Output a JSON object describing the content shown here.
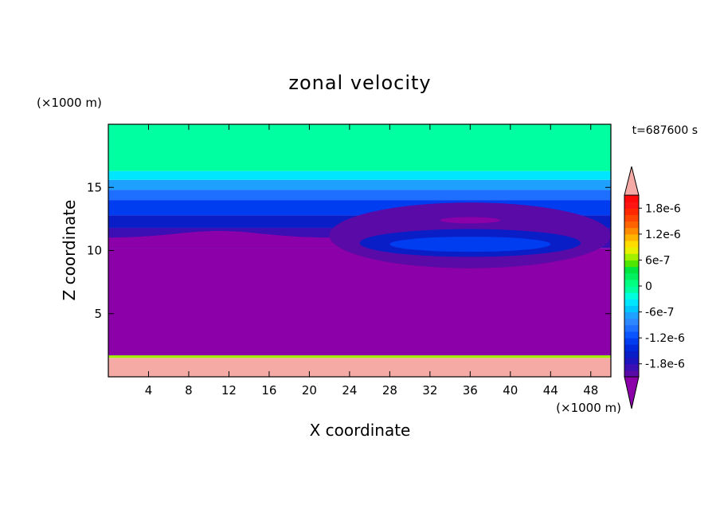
{
  "chart_data": {
    "type": "heatmap",
    "title": "zonal velocity",
    "xlabel": "X coordinate",
    "ylabel": "Z coordinate",
    "x_unit": "(×1000 m)",
    "y_unit": "(×1000 m)",
    "time_label": "t=687600 s",
    "xlim": [
      0,
      50
    ],
    "ylim": [
      0,
      20
    ],
    "x_ticks": [
      4,
      8,
      12,
      16,
      20,
      24,
      28,
      32,
      36,
      40,
      44,
      48
    ],
    "y_ticks": [
      5,
      10,
      15
    ],
    "colorbar": {
      "levels": [
        -2.1e-06,
        -1.95e-06,
        -1.8e-06,
        -1.65e-06,
        -1.5e-06,
        -1.35e-06,
        -1.2e-06,
        -1.05e-06,
        -9e-07,
        -7.5e-07,
        -6e-07,
        -4.5e-07,
        -3e-07,
        -1.5e-07,
        0,
        1.5e-07,
        3e-07,
        4.5e-07,
        6e-07,
        7.5e-07,
        9e-07,
        1.05e-06,
        1.2e-06,
        1.35e-06,
        1.5e-06,
        1.65e-06,
        1.8e-06,
        1.95e-06,
        2.1e-06
      ],
      "colors": [
        "#5a0aa6",
        "#3c0fb4",
        "#1e14bd",
        "#0a1ec8",
        "#0028dc",
        "#003cf0",
        "#0a55ff",
        "#1e6eff",
        "#2d87ff",
        "#1ea0ff",
        "#00c8ff",
        "#00e6ff",
        "#00ffdc",
        "#00ffa0",
        "#00ff80",
        "#00f060",
        "#00e640",
        "#50e600",
        "#a0f000",
        "#e6f000",
        "#ffdc00",
        "#ffb400",
        "#ff8c00",
        "#ff6400",
        "#ff4600",
        "#ff2800",
        "#ff1414",
        "#ff0a0a"
      ],
      "under_color": "#8b00a8",
      "over_color": "#f5aaa6",
      "tick_values": [
        1.8e-06,
        1.2e-06,
        6e-07,
        0,
        -6e-07,
        -1.2e-06,
        -1.8e-06
      ],
      "tick_labels": [
        "1.8e-6",
        "1.2e-6",
        "6e-7",
        "0",
        "-6e-7",
        "-1.2e-6",
        "-1.8e-6"
      ]
    },
    "field": {
      "bands": [
        {
          "z_bottom": 0.0,
          "z_top": 1.5,
          "value": 2.5e-06
        },
        {
          "z_bottom": 1.5,
          "z_top": 1.7,
          "value": 6e-07
        },
        {
          "z_bottom": 1.7,
          "z_top": 10.2,
          "value": -2.5e-06
        },
        {
          "z_bottom": 10.2,
          "z_top": 11.8,
          "value": -1.9e-06
        },
        {
          "z_bottom": 11.8,
          "z_top": 12.8,
          "value": -1.6e-06
        },
        {
          "z_bottom": 12.8,
          "z_top": 14.0,
          "value": -1.3e-06
        },
        {
          "z_bottom": 14.0,
          "z_top": 14.8,
          "value": -1e-06
        },
        {
          "z_bottom": 14.8,
          "z_top": 15.6,
          "value": -7e-07
        },
        {
          "z_bottom": 15.6,
          "z_top": 16.3,
          "value": -4e-07
        },
        {
          "z_bottom": 16.3,
          "z_top": 20.0,
          "value": -1e-07
        }
      ],
      "eddy": {
        "x_center": 36,
        "z_center": 11.2,
        "outer": {
          "rx": 14,
          "rz": 2.6,
          "value": -2e-06
        },
        "lower_core": {
          "x_center": 36,
          "z_center": 10.5,
          "rx": 8,
          "rz": 0.6,
          "value": -1.3e-06
        },
        "lower_ring": {
          "x_center": 36,
          "z_center": 10.6,
          "rx": 11,
          "rz": 1.1,
          "value": -1.6e-06
        },
        "upper_core": {
          "x_center": 36,
          "z_center": 12.4,
          "rx": 3,
          "rz": 0.25,
          "value": -2.3e-06
        }
      }
    }
  }
}
